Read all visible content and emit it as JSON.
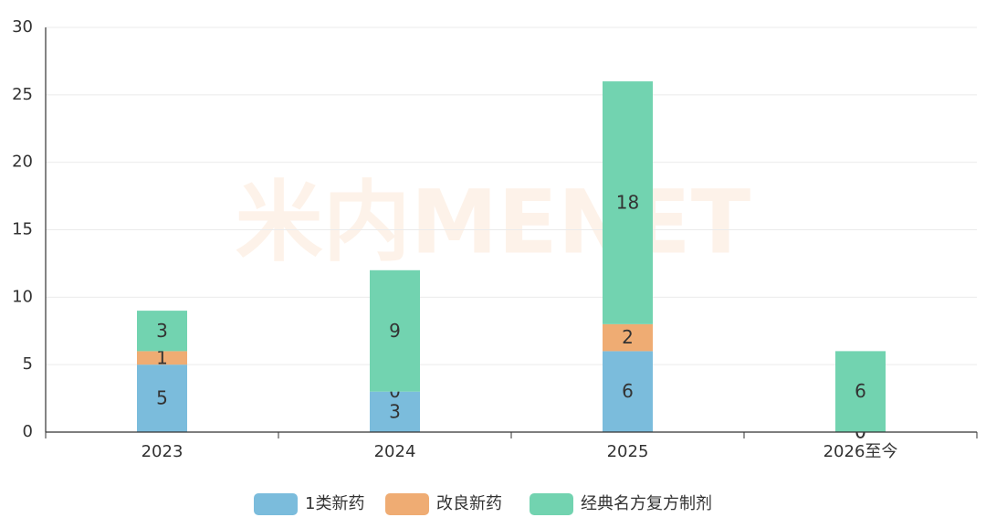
{
  "chart_data": {
    "type": "stacked-bar",
    "watermark": "米内MENET",
    "categories": [
      "2023",
      "2024",
      "2025",
      "2026至今"
    ],
    "series": [
      {
        "name": "1类新药",
        "color": "#7bbcdc",
        "values": [
          5,
          3,
          6,
          0
        ]
      },
      {
        "name": "改良新药",
        "color": "#efac73",
        "values": [
          1,
          0,
          2,
          0
        ]
      },
      {
        "name": "经典名方复方制剂",
        "color": "#72d3b0",
        "values": [
          3,
          9,
          18,
          6
        ]
      }
    ],
    "ylim": [
      0,
      30
    ],
    "yticks": [
      0,
      5,
      10,
      15,
      20,
      25,
      30
    ],
    "grid": true,
    "legend": "bottom"
  }
}
